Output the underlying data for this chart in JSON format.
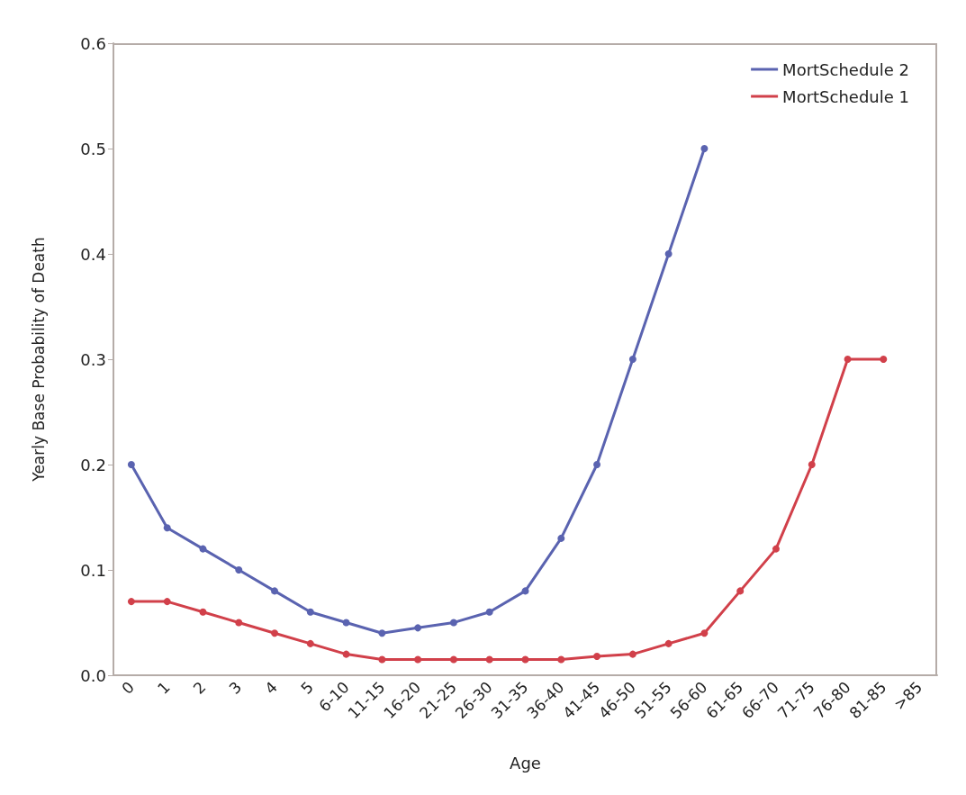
{
  "chart_data": {
    "type": "line",
    "xlabel": "Age",
    "ylabel": "Yearly Base Probability of Death",
    "categories": [
      "0",
      "1",
      "2",
      "3",
      "4",
      "5",
      "6-10",
      "11-15",
      "16-20",
      "21-25",
      "26-30",
      "31-35",
      "36-40",
      "41-45",
      "46-50",
      "51-55",
      "56-60",
      "61-65",
      "66-70",
      "71-75",
      "76-80",
      "81-85",
      ">85"
    ],
    "series": [
      {
        "name": "MortSchedule 2",
        "color": "#5a63b0",
        "values": [
          0.2,
          0.14,
          0.12,
          0.1,
          0.08,
          0.06,
          0.05,
          0.04,
          0.045,
          0.05,
          0.06,
          0.08,
          0.13,
          0.2,
          0.3,
          0.4,
          0.5,
          null,
          null,
          null,
          null,
          null,
          null
        ]
      },
      {
        "name": "MortSchedule 1",
        "color": "#d1404a",
        "values": [
          0.07,
          0.07,
          0.06,
          0.05,
          0.04,
          0.03,
          0.02,
          0.015,
          0.015,
          0.015,
          0.015,
          0.015,
          0.015,
          0.018,
          0.02,
          0.03,
          0.04,
          0.08,
          0.12,
          0.2,
          0.3,
          0.3,
          null
        ]
      }
    ],
    "ylim": [
      0,
      0.6
    ],
    "yticks": [
      {
        "value": 0,
        "label": "0.0"
      },
      {
        "value": 0.1,
        "label": "0.1"
      },
      {
        "value": 0.2,
        "label": "0.2"
      },
      {
        "value": 0.3,
        "label": "0.3"
      },
      {
        "value": 0.4,
        "label": "0.4"
      },
      {
        "value": 0.5,
        "label": "0.5"
      },
      {
        "value": 0.6,
        "label": "0.6"
      }
    ],
    "grid": false,
    "legend": "top right",
    "marker": "circle",
    "line_style": "solid"
  }
}
